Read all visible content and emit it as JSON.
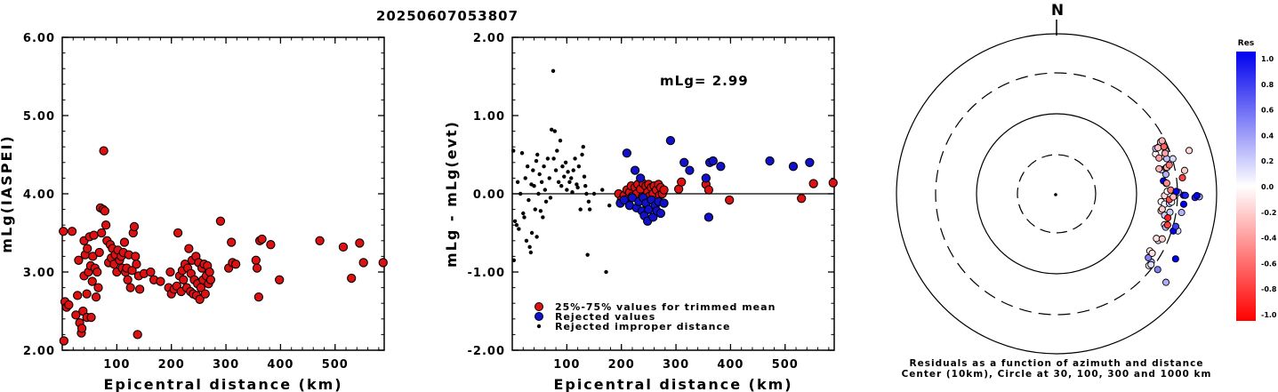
{
  "title": "20250607053807",
  "chart_data": [
    {
      "type": "scatter",
      "ylabel": "mLg(IASPEI)",
      "xlabel": "Epicentral distance (km)",
      "xlim": [
        0,
        590
      ],
      "ylim": [
        2.0,
        6.0
      ],
      "xticks": [
        "100",
        "200",
        "300",
        "400",
        "500"
      ],
      "yticks": [
        "2.00",
        "3.00",
        "4.00",
        "5.00",
        "6.00"
      ],
      "series": [
        {
          "color": "#dd1111",
          "points": [
            [
              2,
              3.52
            ],
            [
              3,
              2.12
            ],
            [
              5,
              2.62
            ],
            [
              8,
              2.55
            ],
            [
              12,
              2.58
            ],
            [
              18,
              3.52
            ],
            [
              25,
              2.45
            ],
            [
              28,
              2.7
            ],
            [
              30,
              3.15
            ],
            [
              32,
              2.35
            ],
            [
              35,
              2.22
            ],
            [
              36,
              2.28
            ],
            [
              38,
              2.5
            ],
            [
              40,
              3.4
            ],
            [
              40,
              2.95
            ],
            [
              42,
              3.22
            ],
            [
              45,
              2.42
            ],
            [
              45,
              2.72
            ],
            [
              46,
              3.3
            ],
            [
              48,
              3.0
            ],
            [
              50,
              3.45
            ],
            [
              52,
              3.08
            ],
            [
              53,
              2.42
            ],
            [
              55,
              2.88
            ],
            [
              56,
              3.2
            ],
            [
              58,
              3.47
            ],
            [
              60,
              3.05
            ],
            [
              62,
              2.68
            ],
            [
              64,
              3.0
            ],
            [
              66,
              2.8
            ],
            [
              68,
              3.25
            ],
            [
              70,
              3.82
            ],
            [
              72,
              3.5
            ],
            [
              75,
              3.8
            ],
            [
              76,
              4.55
            ],
            [
              78,
              3.78
            ],
            [
              80,
              3.6
            ],
            [
              82,
              3.4
            ],
            [
              85,
              3.12
            ],
            [
              88,
              3.35
            ],
            [
              90,
              3.18
            ],
            [
              92,
              3.3
            ],
            [
              95,
              3.1
            ],
            [
              97,
              3.22
            ],
            [
              100,
              3.0
            ],
            [
              102,
              3.28
            ],
            [
              105,
              3.15
            ],
            [
              108,
              3.2
            ],
            [
              110,
              3.05
            ],
            [
              112,
              3.25
            ],
            [
              114,
              3.38
            ],
            [
              116,
              3.0
            ],
            [
              118,
              3.05
            ],
            [
              120,
              2.9
            ],
            [
              122,
              3.22
            ],
            [
              125,
              2.8
            ],
            [
              128,
              3.02
            ],
            [
              130,
              3.5
            ],
            [
              132,
              3.58
            ],
            [
              134,
              3.2
            ],
            [
              136,
              3.1
            ],
            [
              138,
              2.2
            ],
            [
              140,
              2.95
            ],
            [
              142,
              2.78
            ],
            [
              150,
              2.98
            ],
            [
              162,
              3.0
            ],
            [
              168,
              2.9
            ],
            [
              172,
              1.98
            ],
            [
              180,
              2.88
            ],
            [
              195,
              2.8
            ],
            [
              198,
              3.0
            ],
            [
              200,
              2.72
            ],
            [
              205,
              2.78
            ],
            [
              210,
              2.82
            ],
            [
              212,
              3.5
            ],
            [
              215,
              2.95
            ],
            [
              218,
              2.75
            ],
            [
              220,
              3.02
            ],
            [
              222,
              2.9
            ],
            [
              225,
              3.1
            ],
            [
              228,
              2.8
            ],
            [
              230,
              3.05
            ],
            [
              232,
              3.3
            ],
            [
              235,
              2.75
            ],
            [
              236,
              2.98
            ],
            [
              238,
              3.15
            ],
            [
              240,
              2.72
            ],
            [
              242,
              2.9
            ],
            [
              245,
              3.2
            ],
            [
              246,
              2.7
            ],
            [
              248,
              2.85
            ],
            [
              250,
              3.12
            ],
            [
              252,
              2.65
            ],
            [
              254,
              2.8
            ],
            [
              256,
              3.05
            ],
            [
              258,
              2.9
            ],
            [
              260,
              3.1
            ],
            [
              262,
              2.72
            ],
            [
              264,
              2.95
            ],
            [
              266,
              3.08
            ],
            [
              268,
              2.85
            ],
            [
              270,
              3.0
            ],
            [
              272,
              2.9
            ],
            [
              290,
              3.65
            ],
            [
              305,
              3.05
            ],
            [
              310,
              3.38
            ],
            [
              312,
              3.12
            ],
            [
              318,
              3.1
            ],
            [
              355,
              3.15
            ],
            [
              357,
              3.05
            ],
            [
              360,
              2.68
            ],
            [
              362,
              3.4
            ],
            [
              366,
              3.42
            ],
            [
              382,
              3.35
            ],
            [
              398,
              2.9
            ],
            [
              472,
              3.4
            ],
            [
              515,
              3.32
            ],
            [
              530,
              2.92
            ],
            [
              545,
              3.37
            ],
            [
              552,
              3.12
            ],
            [
              588,
              3.12
            ]
          ]
        }
      ]
    },
    {
      "type": "scatter",
      "ylabel": "mLg - mLg(evt)",
      "xlabel": "Epicentral distance (km)",
      "xlim": [
        0,
        590
      ],
      "ylim": [
        -2.0,
        2.0
      ],
      "xticks": [
        "100",
        "200",
        "300",
        "400",
        "500"
      ],
      "yticks": [
        "-2.00",
        "-1.00",
        "0.00",
        "1.00",
        "2.00"
      ],
      "annotation": "mLg= 2.99",
      "legend": [
        "25%-75% values for trimmed mean",
        "Rejected values",
        "Rejected improper distance"
      ],
      "series": [
        {
          "name": "25%-75% values for trimmed mean",
          "color": "#dd1111",
          "points": [
            [
              195,
              0.0
            ],
            [
              200,
              -0.08
            ],
            [
              205,
              -0.02
            ],
            [
              210,
              0.05
            ],
            [
              212,
              -0.06
            ],
            [
              215,
              0.02
            ],
            [
              218,
              0.1
            ],
            [
              220,
              -0.03
            ],
            [
              225,
              0.08
            ],
            [
              228,
              0.0
            ],
            [
              230,
              0.12
            ],
            [
              235,
              0.06
            ],
            [
              238,
              -0.04
            ],
            [
              240,
              0.13
            ],
            [
              245,
              0.1
            ],
            [
              248,
              0.02
            ],
            [
              250,
              0.12
            ],
            [
              252,
              -0.03
            ],
            [
              255,
              0.08
            ],
            [
              258,
              0.0
            ],
            [
              260,
              0.1
            ],
            [
              264,
              0.05
            ],
            [
              268,
              0.12
            ],
            [
              270,
              -0.02
            ],
            [
              272,
              0.08
            ],
            [
              275,
              0.0
            ],
            [
              278,
              0.05
            ],
            [
              305,
              0.06
            ],
            [
              310,
              0.15
            ],
            [
              355,
              0.12
            ],
            [
              360,
              0.05
            ],
            [
              398,
              -0.08
            ],
            [
              530,
              -0.06
            ],
            [
              552,
              0.13
            ],
            [
              588,
              0.14
            ]
          ]
        },
        {
          "name": "Rejected values",
          "color": "#1111cc",
          "points": [
            [
              198,
              -0.12
            ],
            [
              205,
              -0.08
            ],
            [
              210,
              0.52
            ],
            [
              215,
              -0.15
            ],
            [
              220,
              -0.05
            ],
            [
              225,
              0.3
            ],
            [
              228,
              -0.18
            ],
            [
              232,
              -0.1
            ],
            [
              235,
              0.2
            ],
            [
              238,
              -0.22
            ],
            [
              240,
              -0.05
            ],
            [
              242,
              -0.28
            ],
            [
              245,
              -0.12
            ],
            [
              248,
              -0.35
            ],
            [
              250,
              -0.2
            ],
            [
              255,
              -0.08
            ],
            [
              258,
              -0.3
            ],
            [
              262,
              -0.15
            ],
            [
              265,
              -0.22
            ],
            [
              268,
              -0.1
            ],
            [
              272,
              -0.25
            ],
            [
              278,
              -0.12
            ],
            [
              290,
              0.68
            ],
            [
              315,
              0.4
            ],
            [
              325,
              0.3
            ],
            [
              355,
              0.2
            ],
            [
              360,
              -0.3
            ],
            [
              362,
              0.4
            ],
            [
              368,
              0.42
            ],
            [
              382,
              0.35
            ],
            [
              472,
              0.42
            ],
            [
              515,
              0.35
            ],
            [
              545,
              0.4
            ]
          ]
        },
        {
          "name": "Rejected improper distance",
          "color": "#000000",
          "points": [
            [
              2,
              0.55
            ],
            [
              3,
              -0.85
            ],
            [
              5,
              -0.35
            ],
            [
              8,
              -0.4
            ],
            [
              10,
              0.15
            ],
            [
              12,
              -0.45
            ],
            [
              15,
              0.0
            ],
            [
              18,
              0.52
            ],
            [
              20,
              -0.25
            ],
            [
              22,
              -0.3
            ],
            [
              24,
              0.2
            ],
            [
              26,
              -0.6
            ],
            [
              28,
              0.35
            ],
            [
              30,
              -0.08
            ],
            [
              32,
              -0.68
            ],
            [
              34,
              -0.75
            ],
            [
              35,
              0.12
            ],
            [
              36,
              -0.5
            ],
            [
              38,
              0.3
            ],
            [
              40,
              0.1
            ],
            [
              42,
              -0.2
            ],
            [
              44,
              0.42
            ],
            [
              45,
              -0.55
            ],
            [
              46,
              0.5
            ],
            [
              48,
              0.0
            ],
            [
              50,
              0.25
            ],
            [
              52,
              -0.22
            ],
            [
              54,
              0.15
            ],
            [
              56,
              -0.3
            ],
            [
              58,
              0.35
            ],
            [
              60,
              0.05
            ],
            [
              62,
              -0.1
            ],
            [
              65,
              0.45
            ],
            [
              68,
              0.2
            ],
            [
              70,
              -0.05
            ],
            [
              72,
              0.82
            ],
            [
              75,
              1.57
            ],
            [
              76,
              0.45
            ],
            [
              78,
              0.8
            ],
            [
              80,
              0.3
            ],
            [
              82,
              0.55
            ],
            [
              85,
              0.15
            ],
            [
              88,
              0.68
            ],
            [
              90,
              0.1
            ],
            [
              92,
              0.35
            ],
            [
              95,
              0.22
            ],
            [
              98,
              0.4
            ],
            [
              100,
              0.05
            ],
            [
              102,
              0.28
            ],
            [
              105,
              0.15
            ],
            [
              108,
              0.2
            ],
            [
              110,
              0.02
            ],
            [
              112,
              0.3
            ],
            [
              115,
              0.45
            ],
            [
              118,
              0.12
            ],
            [
              120,
              0.08
            ],
            [
              122,
              0.35
            ],
            [
              125,
              -0.2
            ],
            [
              128,
              0.5
            ],
            [
              130,
              0.6
            ],
            [
              132,
              0.22
            ],
            [
              134,
              0.1
            ],
            [
              136,
              0.0
            ],
            [
              138,
              -0.78
            ],
            [
              140,
              -0.1
            ],
            [
              142,
              -0.2
            ],
            [
              150,
              0.0
            ],
            [
              165,
              0.05
            ],
            [
              172,
              -1.0
            ],
            [
              178,
              -0.15
            ]
          ]
        }
      ]
    },
    {
      "type": "scatter",
      "projection": "polar",
      "north_label": "N",
      "caption": [
        "Residuals as a function of azimuth and distance",
        "Center (10km), Circle at 30, 100, 300 and 1000 km"
      ],
      "colorbar_title": "Res",
      "colorbar_ticks": [
        "1.0",
        "0.8",
        "0.6",
        "0.4",
        "0.2",
        "0.0",
        "-0.2",
        "-0.4",
        "-0.6",
        "-0.8",
        "-1.0"
      ],
      "colorbar_colors": [
        "#0000ee",
        "#ffffff",
        "#ff0000"
      ]
    }
  ]
}
